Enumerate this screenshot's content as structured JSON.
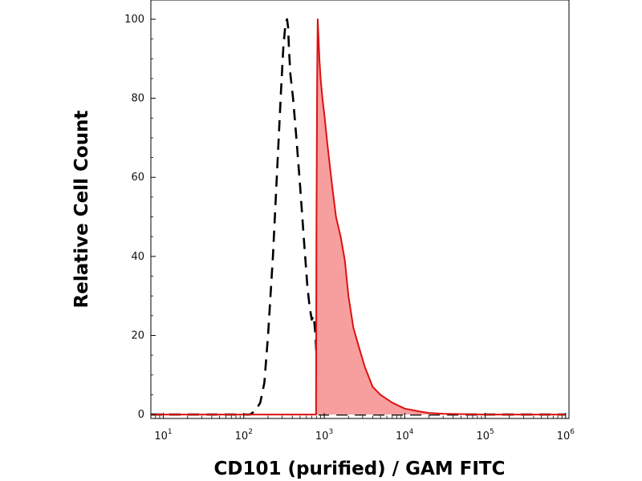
{
  "chart_data": {
    "type": "area",
    "title": "",
    "xlabel": "CD101 (purified) / GAM FITC",
    "ylabel": "Relative Cell Count",
    "x_scale": "log",
    "xlim": [
      7,
      1100000
    ],
    "ylim": [
      -1,
      100
    ],
    "x_ticks": [
      {
        "value": 10,
        "base": "10",
        "exp": "1"
      },
      {
        "value": 100,
        "base": "10",
        "exp": "2"
      },
      {
        "value": 1000,
        "base": "10",
        "exp": "3"
      },
      {
        "value": 10000,
        "base": "10",
        "exp": "4"
      },
      {
        "value": 100000,
        "base": "10",
        "exp": "5"
      },
      {
        "value": 1000000,
        "base": "10",
        "exp": "6"
      }
    ],
    "y_ticks": [
      0,
      20,
      40,
      60,
      80,
      100
    ],
    "grid": false,
    "series": [
      {
        "style": "dashed",
        "color": "#000000",
        "fill": "none",
        "x": [
          7,
          120,
          140,
          160,
          180,
          200,
          230,
          260,
          290,
          310,
          330,
          345,
          355,
          365,
          380,
          410,
          450,
          500,
          560,
          620,
          660,
          700,
          740,
          780,
          800,
          810,
          820,
          830,
          870,
          900,
          1000,
          1500,
          3000,
          10000,
          100000,
          1000000
        ],
        "y": [
          0,
          0,
          1,
          3,
          8,
          20,
          40,
          62,
          82,
          93,
          99,
          100,
          98,
          92,
          86,
          80,
          70,
          58,
          44,
          32,
          27,
          24,
          25,
          20,
          15,
          9,
          4,
          1,
          0,
          0,
          0,
          0,
          0,
          0,
          0,
          0
        ]
      },
      {
        "style": "solid",
        "color": "#dd1111",
        "fill": "#f79e9e",
        "x": [
          7,
          760,
          790,
          800,
          815,
          830,
          850,
          870,
          900,
          950,
          1000,
          1100,
          1250,
          1400,
          1600,
          1800,
          2000,
          2300,
          2700,
          3200,
          4000,
          5000,
          7000,
          10000,
          15000,
          20000,
          30000,
          100000,
          1000000
        ],
        "y": [
          0,
          0,
          0,
          45,
          85,
          100,
          95,
          90,
          85,
          80,
          76,
          68,
          58,
          50,
          45,
          39,
          30,
          22,
          17,
          12,
          7,
          5,
          3,
          1.5,
          0.8,
          0.4,
          0.2,
          0,
          0
        ]
      }
    ]
  }
}
